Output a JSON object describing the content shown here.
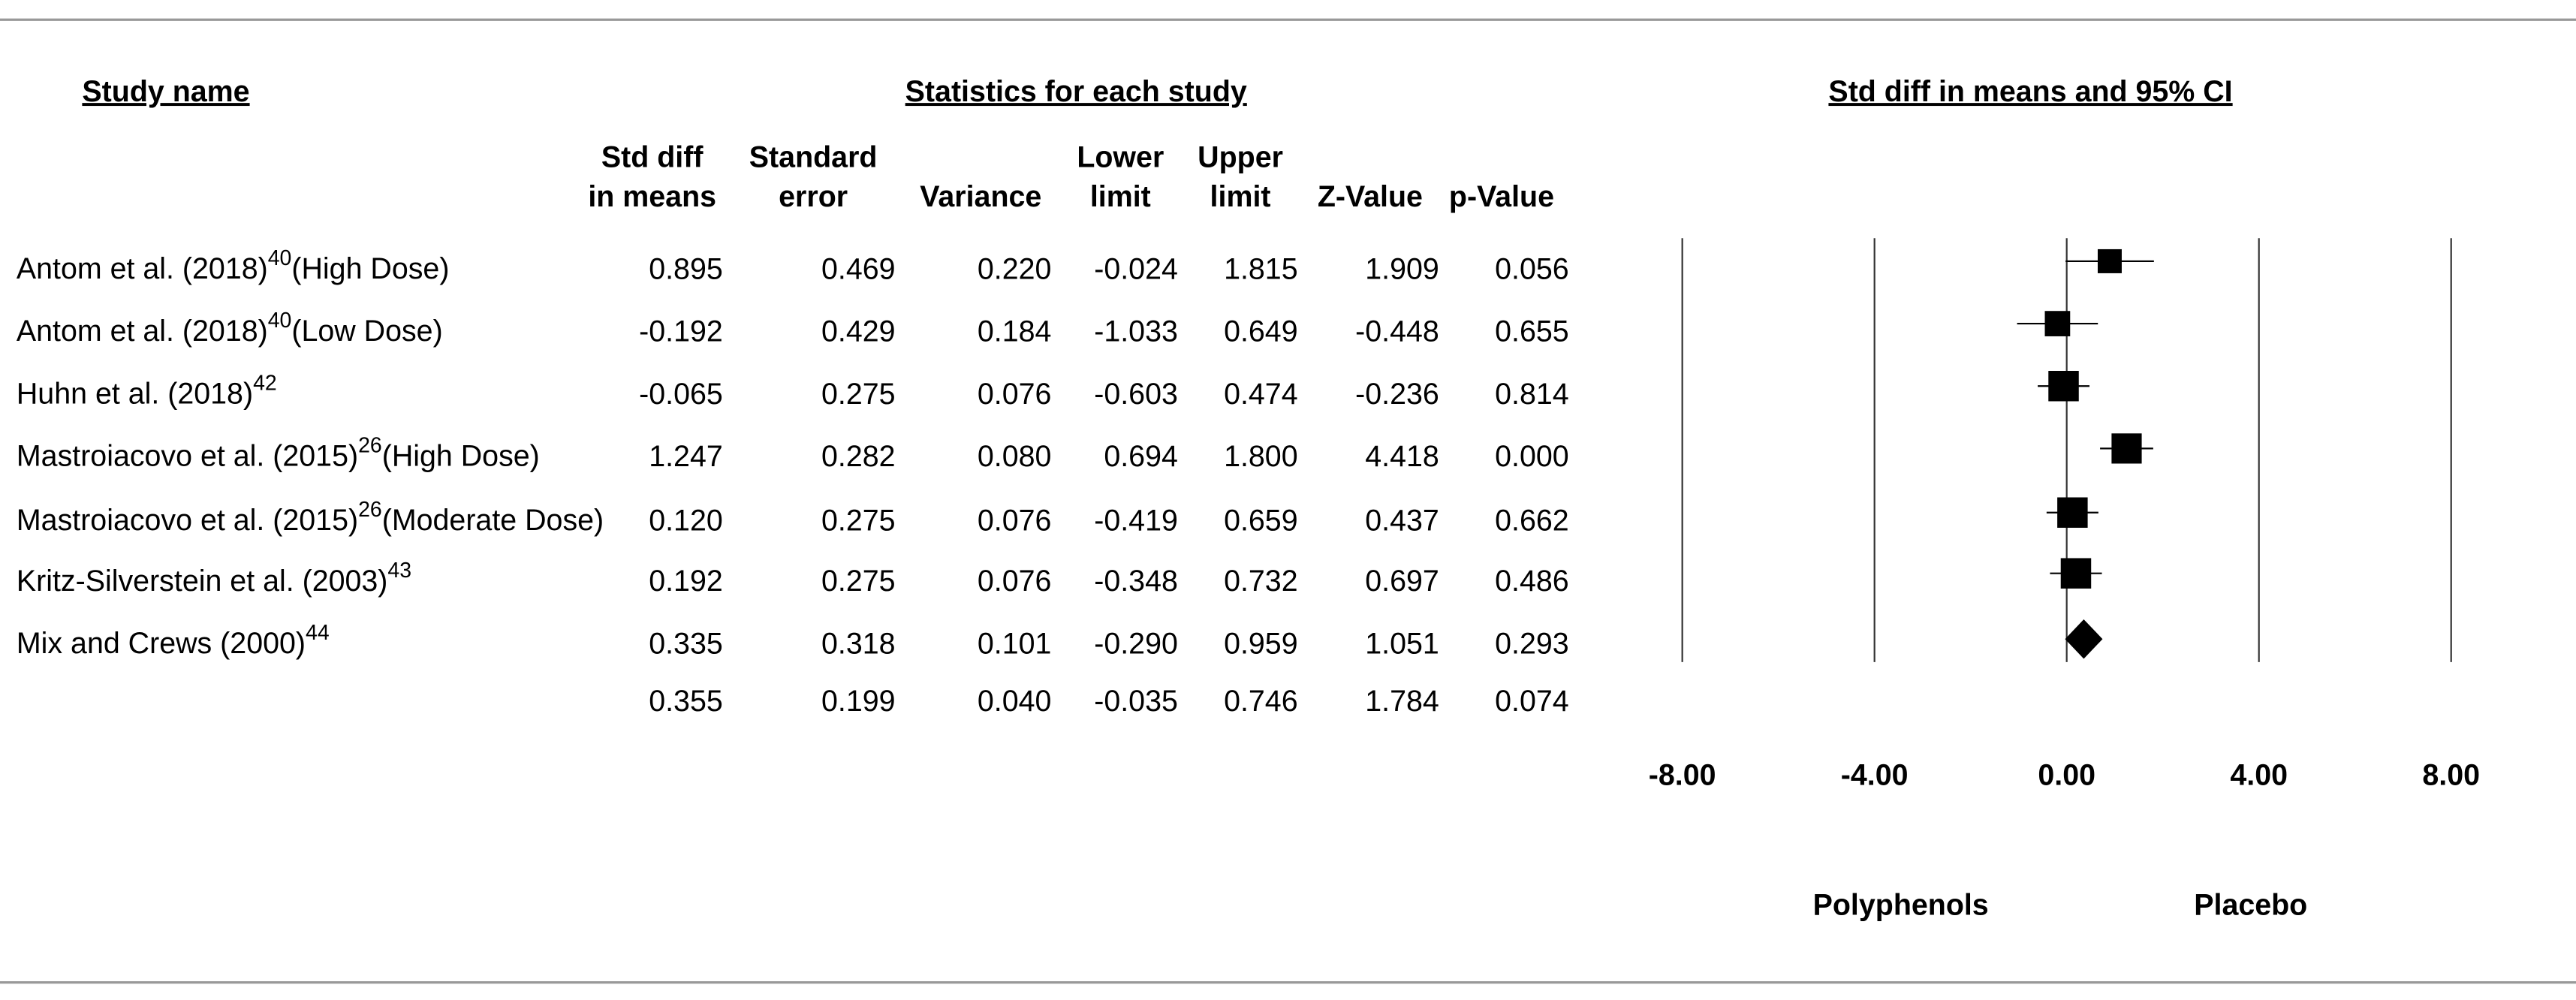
{
  "chart_data": {
    "type": "forest",
    "name_header": "Study name",
    "stats_header": "Statistics for each study",
    "title": "Std diff in means and 95% CI",
    "studies": [
      {
        "name": "Antom et al. (2018)",
        "ref": "40",
        "detail": "(High Dose)"
      },
      {
        "name": "Antom et al. (2018)",
        "ref": "40",
        "detail": "(Low Dose)"
      },
      {
        "name": "Huhn et al. (2018)",
        "ref": "42"
      },
      {
        "name": "Mastroiacovo et al. (2015)",
        "ref": "26",
        "detail": "(High Dose)"
      },
      {
        "name": "Mastroiacovo et al. (2015)",
        "ref": "26",
        "detail": "(Moderate Dose)"
      },
      {
        "name": "Kritz-Silverstein et al. (2003)",
        "ref": "43"
      },
      {
        "name": "Mix and Crews (2000)",
        "ref": "44"
      },
      null
    ],
    "columns": [
      {
        "name": [
          "Std diff",
          "in means"
        ],
        "values": [
          0.895,
          -0.192,
          -0.065,
          1.247,
          0.12,
          0.192,
          0.335,
          0.355
        ],
        "value_labels": [
          "0.895",
          "-0.192",
          "-0.065",
          "1.247",
          "0.120",
          "0.192",
          "0.335",
          "0.355"
        ]
      },
      {
        "name": [
          "Standard",
          "error"
        ],
        "values": [
          0.469,
          0.429,
          0.275,
          0.282,
          0.275,
          0.275,
          0.318,
          0.199
        ],
        "value_labels": [
          "0.469",
          "0.429",
          "0.275",
          "0.282",
          "0.275",
          "0.275",
          "0.318",
          "0.199"
        ]
      },
      {
        "name": [
          "Variance"
        ],
        "values": [
          0.22,
          0.184,
          0.076,
          0.08,
          0.076,
          0.076,
          0.101,
          0.04
        ],
        "value_labels": [
          "0.220",
          "0.184",
          "0.076",
          "0.080",
          "0.076",
          "0.076",
          "0.101",
          "0.040"
        ]
      },
      {
        "name": [
          "Lower",
          "limit"
        ],
        "values": [
          -0.024,
          -1.033,
          -0.603,
          0.694,
          -0.419,
          -0.348,
          -0.29,
          -0.035
        ],
        "value_labels": [
          "-0.024",
          "-1.033",
          "-0.603",
          "0.694",
          "-0.419",
          "-0.348",
          "-0.290",
          "-0.035"
        ]
      },
      {
        "name": [
          "Upper",
          "limit"
        ],
        "values": [
          1.815,
          0.649,
          0.474,
          1.8,
          0.659,
          0.732,
          0.959,
          0.746
        ],
        "value_labels": [
          "1.815",
          "0.649",
          "0.474",
          "1.800",
          "0.659",
          "0.732",
          "0.959",
          "0.746"
        ]
      },
      {
        "name": [
          "Z-Value"
        ],
        "values": [
          1.909,
          -0.448,
          -0.236,
          4.418,
          0.437,
          0.697,
          1.051,
          1.784
        ],
        "value_labels": [
          "1.909",
          "-0.448",
          "-0.236",
          "4.418",
          "0.437",
          "0.697",
          "1.051",
          "1.784"
        ]
      },
      {
        "name": [
          "p-Value"
        ],
        "values": [
          0.056,
          0.655,
          0.814,
          0.0,
          0.662,
          0.486,
          0.293,
          0.074
        ],
        "value_labels": [
          "0.056",
          "0.655",
          "0.814",
          "0.000",
          "0.662",
          "0.486",
          "0.293",
          "0.074"
        ]
      }
    ],
    "xlim": [
      -8,
      8
    ],
    "xticks": [
      {
        "value": -8,
        "label": "-8.00"
      },
      {
        "value": -4,
        "label": "-4.00"
      },
      {
        "value": 0,
        "label": "0.00"
      },
      {
        "value": 4,
        "label": "4.00"
      },
      {
        "value": 8,
        "label": "8.00"
      }
    ],
    "grid": true,
    "left_label": "Polyphenols",
    "right_label": "Placebo",
    "color": "#000000"
  }
}
